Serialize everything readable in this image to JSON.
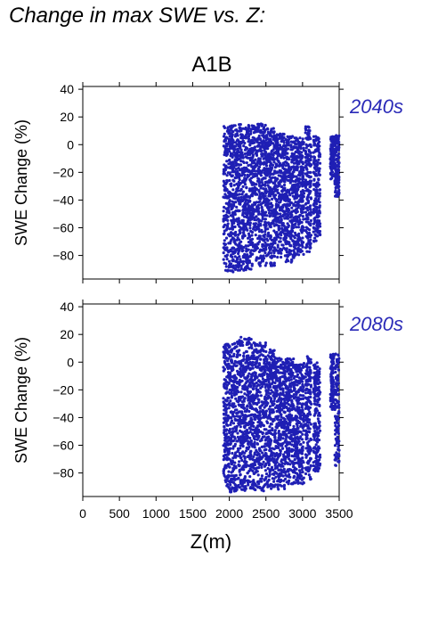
{
  "figure_title": "Change in max SWE vs. Z:",
  "scenario": "A1B",
  "colors": {
    "points": "#1f1fb4",
    "period_label": "#2a2ab8",
    "axis": "#000000"
  },
  "chart_data": [
    {
      "type": "scatter",
      "title": "A1B",
      "period_label": "2040s",
      "xlabel": "",
      "ylabel": "SWE Change (%)",
      "xlim": [
        0,
        3500
      ],
      "ylim": [
        -97,
        42
      ],
      "xticks": [
        0,
        500,
        1000,
        1500,
        2000,
        2500,
        3000,
        3500
      ],
      "yticks": [
        40,
        20,
        0,
        -20,
        -40,
        -60,
        -80
      ],
      "show_xtick_labels": false,
      "grid": false,
      "bands": [
        [
          1920,
          2100,
          -92,
          14
        ],
        [
          2100,
          2300,
          -91,
          15
        ],
        [
          2300,
          2500,
          -88,
          15
        ],
        [
          2500,
          2620,
          -88,
          12
        ],
        [
          2620,
          2760,
          -82,
          8
        ],
        [
          2760,
          2900,
          -85,
          6
        ],
        [
          2900,
          3020,
          -80,
          5
        ],
        [
          3040,
          3120,
          -78,
          13
        ],
        [
          3150,
          3240,
          -70,
          6
        ],
        [
          3380,
          3430,
          -25,
          6
        ],
        [
          3440,
          3500,
          -38,
          7
        ]
      ]
    },
    {
      "type": "scatter",
      "title": "",
      "period_label": "2080s",
      "xlabel": "Z(m)",
      "ylabel": "SWE Change (%)",
      "xlim": [
        0,
        3500
      ],
      "ylim": [
        -97,
        42
      ],
      "xticks": [
        0,
        500,
        1000,
        1500,
        2000,
        2500,
        3000,
        3500
      ],
      "xtick_labels": [
        "0",
        "500",
        "1000",
        "1500",
        "2000",
        "2500",
        "3000",
        "3500"
      ],
      "yticks": [
        40,
        20,
        0,
        -20,
        -40,
        -60,
        -80
      ],
      "show_xtick_labels": true,
      "grid": false,
      "bands": [
        [
          1920,
          2100,
          -95,
          14
        ],
        [
          2100,
          2300,
          -95,
          18
        ],
        [
          2300,
          2500,
          -93,
          14
        ],
        [
          2500,
          2620,
          -92,
          9
        ],
        [
          2620,
          2760,
          -92,
          4
        ],
        [
          2760,
          2900,
          -88,
          3
        ],
        [
          2900,
          3020,
          -88,
          0
        ],
        [
          3040,
          3120,
          -85,
          5
        ],
        [
          3150,
          3240,
          -80,
          0
        ],
        [
          3380,
          3430,
          -35,
          6
        ],
        [
          3440,
          3500,
          -75,
          6
        ]
      ]
    }
  ]
}
